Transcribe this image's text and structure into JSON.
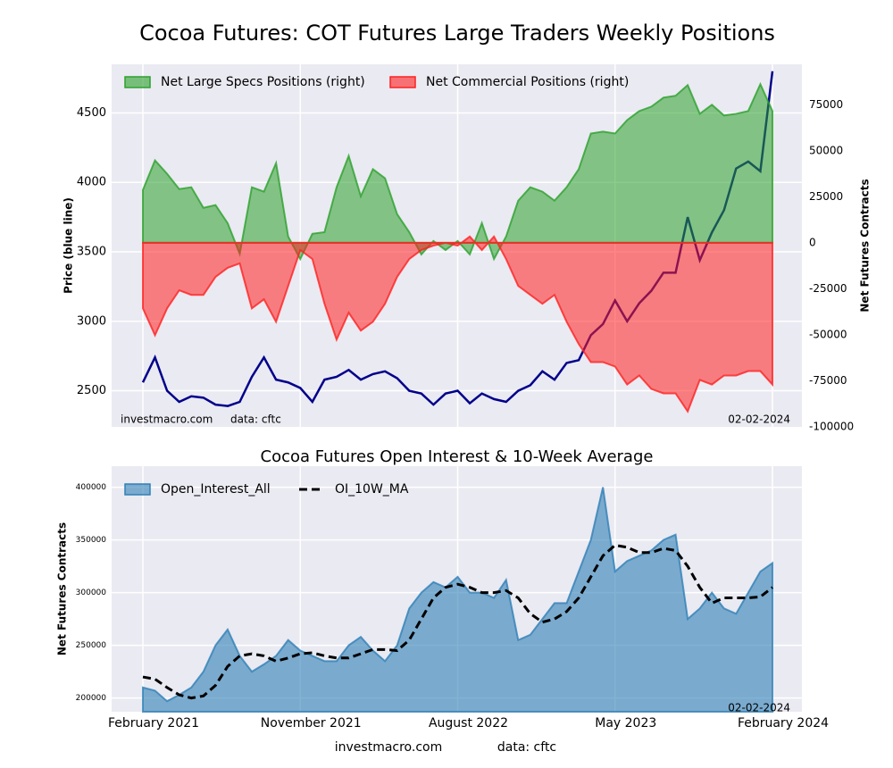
{
  "title": "Cocoa Futures: COT Futures Large Traders Weekly Positions",
  "footer": [
    "investmacro.com",
    "data: cftc"
  ],
  "chart_data": [
    {
      "type": "area",
      "y_label": "Price (blue line)",
      "y2_label": "Net Futures Contracts",
      "annotations": [
        "investmacro.com",
        "data: cftc",
        "02-02-2024"
      ],
      "categories": [
        null,
        null,
        null,
        null,
        null,
        null,
        null,
        null,
        null,
        null,
        null,
        null,
        null,
        null,
        null,
        null,
        null,
        null,
        null,
        null,
        null,
        null,
        null,
        null,
        null,
        null,
        null,
        null,
        null,
        null,
        null,
        null,
        null,
        null,
        null,
        null,
        null,
        null,
        null,
        null,
        null,
        null,
        null,
        null,
        null,
        null,
        null,
        null,
        null,
        null,
        null,
        null,
        null
      ],
      "ylim": [
        2240,
        4850
      ],
      "yticks": [
        2500,
        3000,
        3500,
        4000,
        4500
      ],
      "y2lim": [
        -100000,
        97000
      ],
      "y2ticks": [
        -100000,
        -75000,
        -50000,
        -25000,
        0,
        25000,
        50000,
        75000
      ],
      "grid": true,
      "legend": "upper left",
      "series": [
        {
          "style": "line",
          "color": "#00008b",
          "values": [
            2560,
            2740,
            2500,
            2420,
            2460,
            2450,
            2400,
            2390,
            2420,
            2600,
            2740,
            2580,
            2560,
            2520,
            2420,
            2580,
            2600,
            2650,
            2580,
            2620,
            2640,
            2590,
            2500,
            2480,
            2400,
            2480,
            2500,
            2410,
            2480,
            2440,
            2420,
            2500,
            2540,
            2640,
            2580,
            2700,
            2720,
            2900,
            2980,
            3150,
            3000,
            3130,
            3220,
            3350,
            3350,
            3750,
            3440,
            3640,
            3800,
            4100,
            4150,
            4080,
            4800
          ]
        },
        {
          "name": "Net Large Specs Positions (right)",
          "style": "area",
          "axis": "y2",
          "color": "#2ca02c",
          "values": [
            28700,
            44800,
            37500,
            29200,
            30200,
            19000,
            20500,
            10700,
            -6000,
            30200,
            27800,
            43300,
            3400,
            -8800,
            4900,
            5800,
            30200,
            47200,
            25300,
            40000,
            35100,
            15600,
            5800,
            -6300,
            1000,
            -3900,
            1000,
            -6300,
            10700,
            -8800,
            3400,
            22900,
            30200,
            27800,
            22900,
            30200,
            40000,
            59400,
            60400,
            59400,
            66700,
            71600,
            74000,
            78900,
            79900,
            85700,
            70100,
            75000,
            69200,
            70100,
            71600,
            86200,
            71600
          ]
        },
        {
          "name": "Net Commercial Positions (right)",
          "style": "area",
          "axis": "y2",
          "color": "#ff2020",
          "values": [
            -35600,
            -50200,
            -35600,
            -25800,
            -28300,
            -28300,
            -18500,
            -13600,
            -11200,
            -35600,
            -30700,
            -42900,
            -23400,
            -3900,
            -8800,
            -33100,
            -52600,
            -38000,
            -47700,
            -42900,
            -33100,
            -18500,
            -8800,
            -3900,
            -1500,
            0,
            -1500,
            3400,
            -3900,
            3400,
            -8800,
            -23400,
            -28300,
            -33100,
            -28300,
            -42900,
            -55000,
            -64800,
            -64800,
            -67200,
            -77000,
            -72100,
            -79400,
            -81800,
            -81800,
            -91600,
            -74500,
            -77000,
            -72100,
            -72100,
            -69700,
            -69700,
            -77000
          ]
        }
      ]
    },
    {
      "type": "area",
      "title": "Cocoa Futures Open Interest & 10-Week Average",
      "y_label": "Net Futures Contracts",
      "annotations": [
        "02-02-2024"
      ],
      "categories": [
        "February 2021",
        null,
        null,
        null,
        null,
        null,
        null,
        null,
        null,
        null,
        null,
        null,
        null,
        "November 2021",
        null,
        null,
        null,
        null,
        null,
        null,
        null,
        null,
        null,
        null,
        null,
        null,
        "August 2022",
        null,
        null,
        null,
        null,
        null,
        null,
        null,
        null,
        null,
        null,
        null,
        null,
        "May 2023",
        null,
        null,
        null,
        null,
        null,
        null,
        null,
        null,
        null,
        null,
        null,
        null,
        "February 2024"
      ],
      "ylim": [
        187000,
        420000
      ],
      "yticks": [
        200000,
        250000,
        300000,
        350000,
        400000
      ],
      "grid": true,
      "legend": "upper left",
      "series": [
        {
          "name": "Open_Interest_All",
          "style": "area",
          "color": "#2f7fb5",
          "values": [
            210000,
            207000,
            197000,
            203000,
            210000,
            225000,
            250000,
            265000,
            240000,
            225000,
            232000,
            240000,
            255000,
            245000,
            240000,
            235000,
            235000,
            250000,
            258000,
            245000,
            235000,
            250000,
            285000,
            300000,
            310000,
            305000,
            315000,
            300000,
            300000,
            295000,
            312000,
            255000,
            260000,
            275000,
            290000,
            290000,
            320000,
            350000,
            400000,
            320000,
            330000,
            335000,
            340000,
            350000,
            355000,
            275000,
            285000,
            300000,
            285000,
            280000,
            300000,
            320000,
            328000
          ]
        },
        {
          "name": "OI_10W_MA",
          "style": "dashed",
          "color": "#000000",
          "values": [
            220000,
            218000,
            210000,
            203000,
            200000,
            202000,
            212000,
            230000,
            240000,
            242000,
            240000,
            235000,
            238000,
            242000,
            243000,
            240000,
            238000,
            238000,
            242000,
            246000,
            246000,
            245000,
            255000,
            275000,
            295000,
            305000,
            308000,
            305000,
            300000,
            300000,
            302000,
            295000,
            280000,
            272000,
            275000,
            282000,
            295000,
            315000,
            335000,
            345000,
            343000,
            338000,
            338000,
            342000,
            340000,
            325000,
            305000,
            290000,
            295000,
            295000,
            295000,
            296000,
            305000
          ]
        }
      ]
    }
  ]
}
